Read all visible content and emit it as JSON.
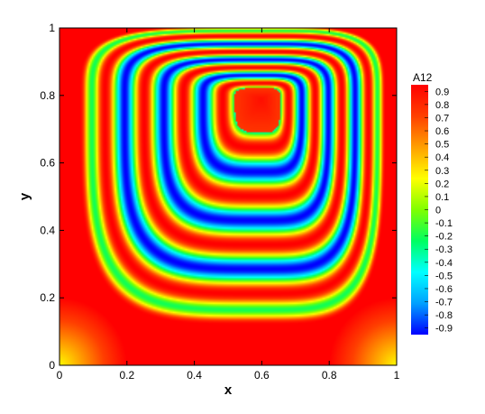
{
  "chart_data": {
    "type": "heatmap",
    "title": "",
    "xlabel": "x",
    "ylabel": "y",
    "xlim": [
      0,
      1
    ],
    "ylim": [
      0,
      1
    ],
    "x_ticks": [
      "0",
      "0.2",
      "0.4",
      "0.6",
      "0.8",
      "1"
    ],
    "y_ticks": [
      "0",
      "0.2",
      "0.4",
      "0.6",
      "0.8",
      "1"
    ],
    "x_tick_values": [
      0,
      0.2,
      0.4,
      0.6,
      0.8,
      1
    ],
    "y_tick_values": [
      0,
      0.2,
      0.4,
      0.6,
      0.8,
      1
    ],
    "colorbar": {
      "title": "A12",
      "range": [
        -0.95,
        0.95
      ],
      "levels": [
        "0.9",
        "0.8",
        "0.7",
        "0.6",
        "0.5",
        "0.4",
        "0.3",
        "0.2",
        "0.1",
        "0",
        "-0.1",
        "-0.2",
        "-0.3",
        "-0.4",
        "-0.5",
        "-0.6",
        "-0.7",
        "-0.8",
        "-0.9"
      ],
      "level_values": [
        0.9,
        0.8,
        0.7,
        0.6,
        0.5,
        0.4,
        0.3,
        0.2,
        0.1,
        0,
        -0.1,
        -0.2,
        -0.3,
        -0.4,
        -0.5,
        -0.6,
        -0.7,
        -0.8,
        -0.9
      ],
      "colormap": [
        "#0000ff",
        "#00a0ff",
        "#00ffff",
        "#00ff60",
        "#80ff00",
        "#ffff00",
        "#ffa000",
        "#ff4000",
        "#ff0000"
      ]
    },
    "grid": false,
    "legend": "right"
  }
}
